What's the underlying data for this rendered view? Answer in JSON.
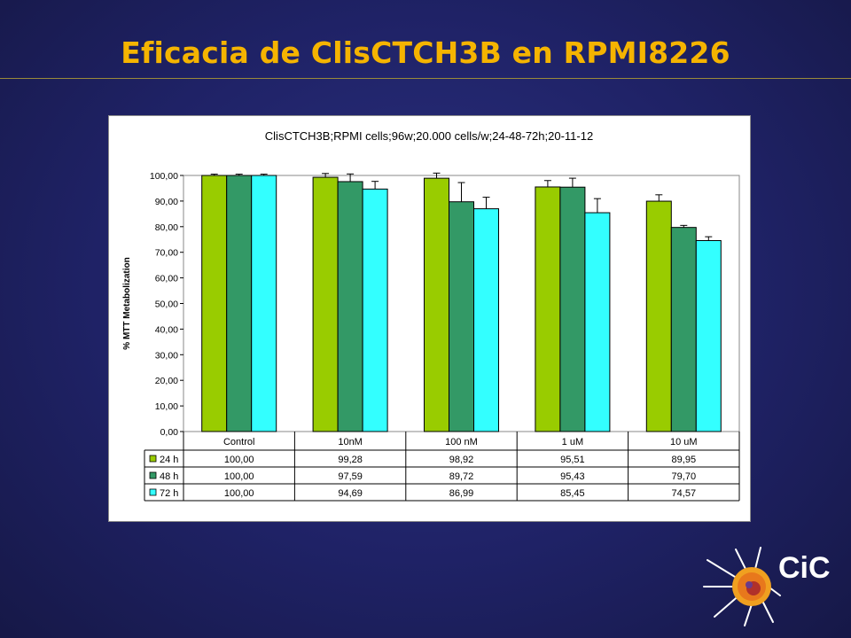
{
  "slide": {
    "title": "Eficacia de ClisCTCH3B en RPMI8226"
  },
  "logo": {
    "text": "CiC",
    "icon": "cell-logo-icon"
  },
  "chart_data": {
    "type": "bar",
    "title": "ClisCTCH3B;RPMI cells;96w;20.000 cells/w;24-48-72h;20-11-12",
    "ylabel": "% MTT Metabolization",
    "xlabel": "",
    "ylim": [
      0,
      100
    ],
    "yticks": [
      "0,00",
      "10,00",
      "20,00",
      "30,00",
      "40,00",
      "50,00",
      "60,00",
      "70,00",
      "80,00",
      "90,00",
      "100,00"
    ],
    "categories": [
      "Control",
      "10nM",
      "100 nM",
      "1 uM",
      "10 uM"
    ],
    "series": [
      {
        "name": "24 h",
        "color": "#99cc00",
        "values": [
          100.0,
          99.28,
          98.92,
          95.51,
          89.95
        ],
        "labels": [
          "100,00",
          "99,28",
          "98,92",
          "95,51",
          "89,95"
        ],
        "errors": [
          0.5,
          1.5,
          2.0,
          2.5,
          2.5
        ]
      },
      {
        "name": "48 h",
        "color": "#339966",
        "values": [
          100.0,
          97.59,
          89.72,
          95.43,
          79.7
        ],
        "labels": [
          "100,00",
          "97,59",
          "89,72",
          "95,43",
          "79,70"
        ],
        "errors": [
          0.5,
          3.0,
          7.5,
          3.5,
          0.8
        ]
      },
      {
        "name": "72 h",
        "color": "#33ffff",
        "values": [
          100.0,
          94.69,
          86.99,
          85.45,
          74.57
        ],
        "labels": [
          "100,00",
          "94,69",
          "86,99",
          "85,45",
          "74,57"
        ],
        "errors": [
          0.5,
          3.0,
          4.5,
          5.5,
          1.5
        ]
      }
    ],
    "grid": false,
    "legend": "data-table"
  }
}
